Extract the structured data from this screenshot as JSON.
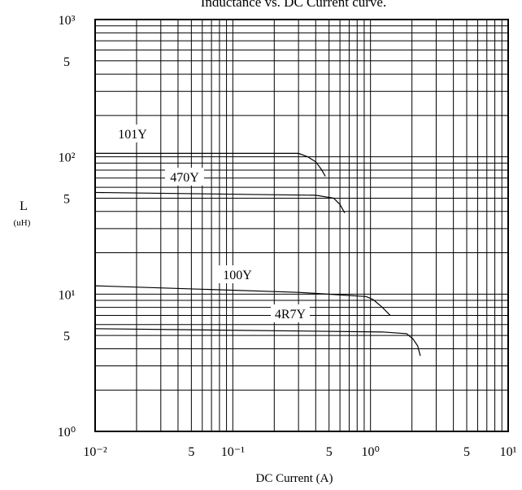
{
  "chart_data": {
    "type": "line",
    "title": "Inductance vs. DC Current curve.",
    "xlabel": "DC Current (A)",
    "ylabel": "L",
    "yunit": "(uH)",
    "xlog": true,
    "ylog": true,
    "grid": true,
    "xlim": [
      0.01,
      10
    ],
    "ylim": [
      1,
      1000
    ],
    "xticks": [
      {
        "value": 0.01,
        "label": "10⁻²"
      },
      {
        "value": 0.05,
        "label": "5"
      },
      {
        "value": 0.1,
        "label": "10⁻¹"
      },
      {
        "value": 0.5,
        "label": "5"
      },
      {
        "value": 1,
        "label": "10⁰"
      },
      {
        "value": 5,
        "label": "5"
      },
      {
        "value": 10,
        "label": "10¹"
      }
    ],
    "yticks": [
      {
        "value": 1,
        "label": "10⁰"
      },
      {
        "value": 5,
        "label": "5"
      },
      {
        "value": 10,
        "label": "10¹"
      },
      {
        "value": 50,
        "label": "5"
      },
      {
        "value": 100,
        "label": "10²"
      },
      {
        "value": 500,
        "label": "5"
      },
      {
        "value": 1000,
        "label": "10³"
      }
    ],
    "xminor": [
      0.02,
      0.03,
      0.04,
      0.06,
      0.07,
      0.08,
      0.09,
      0.2,
      0.3,
      0.4,
      0.6,
      0.7,
      0.8,
      0.9,
      2,
      3,
      4,
      6,
      7,
      8,
      9
    ],
    "yminor": [
      2,
      3,
      4,
      6,
      7,
      8,
      9,
      20,
      30,
      40,
      60,
      70,
      80,
      90,
      200,
      300,
      400,
      600,
      700,
      800,
      900
    ],
    "series": [
      {
        "name": "101Y",
        "color": "#000000",
        "x": [
          0.01,
          0.3,
          0.35,
          0.4,
          0.44,
          0.47
        ],
        "values": [
          106,
          106,
          100,
          92,
          81,
          72
        ]
      },
      {
        "name": "470Y",
        "color": "#000000",
        "x": [
          0.01,
          0.4,
          0.54,
          0.6,
          0.65
        ],
        "values": [
          55,
          52.5,
          50,
          45,
          39
        ]
      },
      {
        "name": "100Y",
        "color": "#000000",
        "x": [
          0.01,
          0.3,
          0.93,
          1.05,
          1.22,
          1.39
        ],
        "values": [
          11.5,
          10.3,
          9.6,
          9.1,
          8,
          7
        ]
      },
      {
        "name": "4R7Y",
        "color": "#000000",
        "x": [
          0.01,
          1.22,
          1.83,
          2.04,
          2.2,
          2.3
        ],
        "values": [
          5.6,
          5.3,
          5.15,
          4.7,
          4.2,
          3.55
        ]
      }
    ]
  }
}
